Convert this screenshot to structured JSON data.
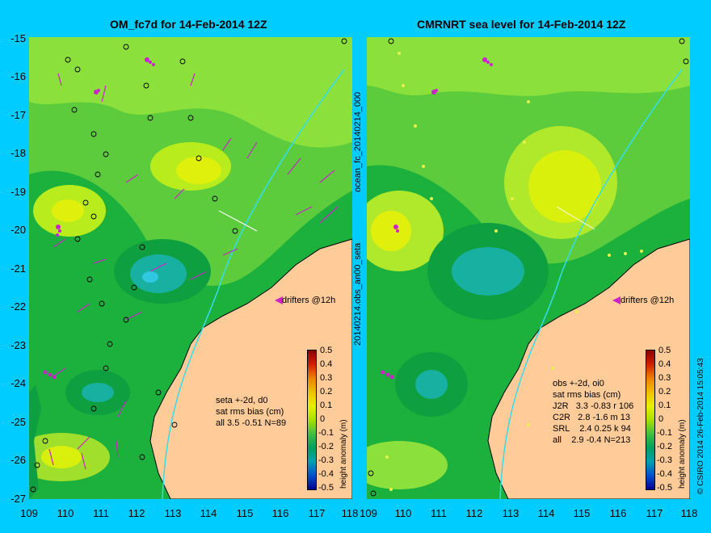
{
  "left_title": "OM_fc7d for 14-Feb-2014 12Z",
  "right_title": "CMRNRT sea level  for 14-Feb-2014 12Z",
  "y_ticks": [
    "-15",
    "-16",
    "-17",
    "-18",
    "-19",
    "-20",
    "-21",
    "-22",
    "-23",
    "-24",
    "-25",
    "-26",
    "-27"
  ],
  "x_ticks": [
    "109",
    "110",
    "111",
    "112",
    "113",
    "114",
    "115",
    "116",
    "117",
    "118"
  ],
  "middle_label_top": "ocean_fc_20140214_000",
  "middle_label_bottom": "20140214.obs_an00_seta",
  "right_edge_label": "© CSIRO 2014    26-Feb-2014 15:05:43",
  "colorbar": {
    "labels": [
      "0.5",
      "0.4",
      "0.3",
      "0.2",
      "0.1",
      "0",
      "-0.1",
      "-0.2",
      "-0.3",
      "-0.4",
      "-0.5"
    ],
    "title": "height anomaly (m)",
    "colors": [
      "#8b0000",
      "#d02000",
      "#f08000",
      "#f0c000",
      "#e8f000",
      "#a8e000",
      "#40c040",
      "#00a060",
      "#00a0b0",
      "#0050d0",
      "#000090"
    ]
  },
  "drifters_label": "drifters @12h",
  "left_legend": "seta +-2d, d0\nsat rms bias (cm)\nall 3.5 -0.51 N=89",
  "right_legend": "obs +-2d, oi0\nsat rms bias (cm)\nJ2R   3.3 -0.83 r 106\nC2R   2.8 -1.6 m 13\nSRL    2.4 0.25 k 94\nall    2.9 -0.4 N=213",
  "colors": {
    "background": "#00ccff",
    "land": "#ffcc99",
    "sea_base": "#1cb03c",
    "vectors": "#cc22cc",
    "track": "#33ddee"
  }
}
